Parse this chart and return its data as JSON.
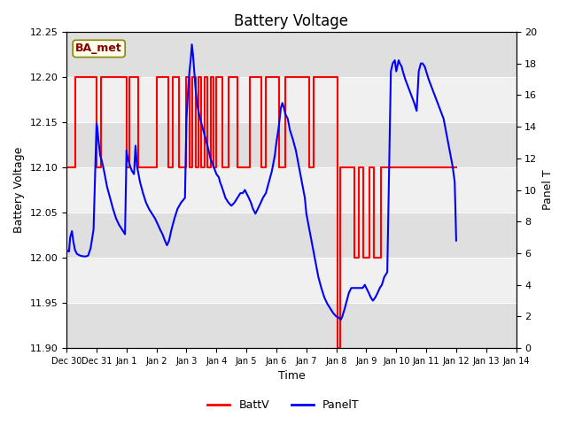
{
  "title": "Battery Voltage",
  "xlabel": "Time",
  "ylabel_left": "Battery Voltage",
  "ylabel_right": "Panel T",
  "ylim_left": [
    11.9,
    12.25
  ],
  "ylim_right": [
    0,
    20
  ],
  "background_color": "#ffffff",
  "plot_bg_color": "#f0f0f0",
  "grid_color": "#ffffff",
  "annotation_text": "BA_met",
  "annotation_bg": "#ffffee",
  "annotation_border": "#888800",
  "annotation_text_color": "#880000",
  "legend_labels": [
    "BattV",
    "PanelT"
  ],
  "batt_color": "red",
  "panel_color": "blue",
  "x_tick_labels": [
    "Dec 30",
    "Dec 31",
    "Jan 1",
    "Jan 2",
    "Jan 3",
    "Jan 4",
    "Jan 5",
    "Jan 6",
    "Jan 7",
    "Jan 8",
    "Jan 9",
    "Jan 10",
    "Jan 11",
    "Jan 12",
    "Jan 13",
    "Jan 14"
  ],
  "band_color": "#d8d8d8",
  "batt_data": [
    [
      0.0,
      12.1
    ],
    [
      0.3,
      12.1
    ],
    [
      0.3,
      12.2
    ],
    [
      1.0,
      12.2
    ],
    [
      1.0,
      12.1
    ],
    [
      1.15,
      12.1
    ],
    [
      1.15,
      12.2
    ],
    [
      2.0,
      12.2
    ],
    [
      2.0,
      12.1
    ],
    [
      2.1,
      12.1
    ],
    [
      2.1,
      12.2
    ],
    [
      2.4,
      12.2
    ],
    [
      2.4,
      12.1
    ],
    [
      3.0,
      12.1
    ],
    [
      3.0,
      12.2
    ],
    [
      3.4,
      12.2
    ],
    [
      3.4,
      12.1
    ],
    [
      3.55,
      12.1
    ],
    [
      3.55,
      12.2
    ],
    [
      3.75,
      12.2
    ],
    [
      3.75,
      12.1
    ],
    [
      4.0,
      12.1
    ],
    [
      4.0,
      12.2
    ],
    [
      4.1,
      12.2
    ],
    [
      4.1,
      12.1
    ],
    [
      4.2,
      12.1
    ],
    [
      4.2,
      12.2
    ],
    [
      4.3,
      12.2
    ],
    [
      4.3,
      12.1
    ],
    [
      4.4,
      12.1
    ],
    [
      4.4,
      12.2
    ],
    [
      4.5,
      12.2
    ],
    [
      4.5,
      12.1
    ],
    [
      4.6,
      12.1
    ],
    [
      4.6,
      12.2
    ],
    [
      4.7,
      12.2
    ],
    [
      4.7,
      12.1
    ],
    [
      4.8,
      12.1
    ],
    [
      4.8,
      12.2
    ],
    [
      4.9,
      12.2
    ],
    [
      4.9,
      12.1
    ],
    [
      5.0,
      12.1
    ],
    [
      5.0,
      12.2
    ],
    [
      5.2,
      12.2
    ],
    [
      5.2,
      12.1
    ],
    [
      5.4,
      12.1
    ],
    [
      5.4,
      12.2
    ],
    [
      5.7,
      12.2
    ],
    [
      5.7,
      12.1
    ],
    [
      6.1,
      12.1
    ],
    [
      6.1,
      12.2
    ],
    [
      6.5,
      12.2
    ],
    [
      6.5,
      12.1
    ],
    [
      6.65,
      12.1
    ],
    [
      6.65,
      12.2
    ],
    [
      7.1,
      12.2
    ],
    [
      7.1,
      12.1
    ],
    [
      7.3,
      12.1
    ],
    [
      7.3,
      12.2
    ],
    [
      8.1,
      12.2
    ],
    [
      8.1,
      12.1
    ],
    [
      8.25,
      12.1
    ],
    [
      8.25,
      12.2
    ],
    [
      9.05,
      12.2
    ],
    [
      9.05,
      11.9
    ],
    [
      9.12,
      11.9
    ],
    [
      9.12,
      12.1
    ],
    [
      9.6,
      12.1
    ],
    [
      9.6,
      12.0
    ],
    [
      9.75,
      12.0
    ],
    [
      9.75,
      12.1
    ],
    [
      9.9,
      12.1
    ],
    [
      9.9,
      12.0
    ],
    [
      10.1,
      12.0
    ],
    [
      10.1,
      12.1
    ],
    [
      10.25,
      12.1
    ],
    [
      10.25,
      12.0
    ],
    [
      10.5,
      12.0
    ],
    [
      10.5,
      12.1
    ],
    [
      13.0,
      12.1
    ]
  ],
  "panel_data": [
    [
      0.0,
      6.2
    ],
    [
      0.08,
      6.1
    ],
    [
      0.12,
      7.0
    ],
    [
      0.18,
      7.4
    ],
    [
      0.22,
      6.8
    ],
    [
      0.28,
      6.2
    ],
    [
      0.35,
      5.95
    ],
    [
      0.45,
      5.85
    ],
    [
      0.55,
      5.8
    ],
    [
      0.65,
      5.8
    ],
    [
      0.72,
      5.85
    ],
    [
      0.8,
      6.3
    ],
    [
      0.9,
      7.5
    ],
    [
      1.0,
      14.2
    ],
    [
      1.02,
      14.0
    ],
    [
      1.06,
      13.2
    ],
    [
      1.12,
      12.2
    ],
    [
      1.18,
      11.8
    ],
    [
      1.25,
      11.2
    ],
    [
      1.35,
      10.2
    ],
    [
      1.45,
      9.5
    ],
    [
      1.55,
      8.8
    ],
    [
      1.65,
      8.2
    ],
    [
      1.75,
      7.8
    ],
    [
      1.85,
      7.5
    ],
    [
      1.95,
      7.2
    ],
    [
      2.0,
      12.5
    ],
    [
      2.02,
      12.2
    ],
    [
      2.06,
      11.9
    ],
    [
      2.12,
      11.5
    ],
    [
      2.18,
      11.2
    ],
    [
      2.25,
      11.0
    ],
    [
      2.3,
      12.8
    ],
    [
      2.35,
      11.5
    ],
    [
      2.45,
      10.5
    ],
    [
      2.55,
      9.8
    ],
    [
      2.65,
      9.2
    ],
    [
      2.75,
      8.8
    ],
    [
      2.85,
      8.5
    ],
    [
      2.95,
      8.2
    ],
    [
      3.0,
      8.0
    ],
    [
      3.05,
      7.8
    ],
    [
      3.12,
      7.5
    ],
    [
      3.2,
      7.2
    ],
    [
      3.28,
      6.8
    ],
    [
      3.35,
      6.5
    ],
    [
      3.42,
      6.8
    ],
    [
      3.5,
      7.5
    ],
    [
      3.6,
      8.2
    ],
    [
      3.7,
      8.8
    ],
    [
      3.82,
      9.2
    ],
    [
      3.95,
      9.5
    ],
    [
      4.0,
      14.5
    ],
    [
      4.02,
      15.2
    ],
    [
      4.06,
      16.5
    ],
    [
      4.1,
      17.5
    ],
    [
      4.14,
      18.2
    ],
    [
      4.18,
      19.2
    ],
    [
      4.22,
      18.5
    ],
    [
      4.26,
      17.5
    ],
    [
      4.3,
      16.5
    ],
    [
      4.35,
      15.5
    ],
    [
      4.42,
      14.8
    ],
    [
      4.5,
      14.2
    ],
    [
      4.6,
      13.5
    ],
    [
      4.7,
      12.8
    ],
    [
      4.8,
      12.0
    ],
    [
      4.9,
      11.5
    ],
    [
      5.0,
      11.0
    ],
    [
      5.08,
      10.8
    ],
    [
      5.12,
      10.5
    ],
    [
      5.18,
      10.2
    ],
    [
      5.25,
      9.8
    ],
    [
      5.3,
      9.5
    ],
    [
      5.4,
      9.2
    ],
    [
      5.5,
      9.0
    ],
    [
      5.6,
      9.2
    ],
    [
      5.7,
      9.5
    ],
    [
      5.8,
      9.8
    ],
    [
      5.88,
      9.8
    ],
    [
      5.95,
      10.0
    ],
    [
      6.0,
      9.8
    ],
    [
      6.08,
      9.5
    ],
    [
      6.15,
      9.2
    ],
    [
      6.22,
      8.8
    ],
    [
      6.3,
      8.5
    ],
    [
      6.38,
      8.8
    ],
    [
      6.48,
      9.2
    ],
    [
      6.55,
      9.5
    ],
    [
      6.65,
      9.8
    ],
    [
      6.75,
      10.5
    ],
    [
      6.85,
      11.2
    ],
    [
      6.95,
      12.2
    ],
    [
      7.0,
      13.0
    ],
    [
      7.08,
      14.0
    ],
    [
      7.15,
      15.2
    ],
    [
      7.2,
      15.5
    ],
    [
      7.25,
      15.2
    ],
    [
      7.3,
      14.8
    ],
    [
      7.38,
      14.5
    ],
    [
      7.45,
      13.8
    ],
    [
      7.55,
      13.2
    ],
    [
      7.65,
      12.5
    ],
    [
      7.75,
      11.5
    ],
    [
      7.85,
      10.5
    ],
    [
      7.95,
      9.5
    ],
    [
      8.0,
      8.5
    ],
    [
      8.1,
      7.5
    ],
    [
      8.2,
      6.5
    ],
    [
      8.3,
      5.5
    ],
    [
      8.4,
      4.5
    ],
    [
      8.5,
      3.8
    ],
    [
      8.6,
      3.2
    ],
    [
      8.7,
      2.8
    ],
    [
      8.8,
      2.5
    ],
    [
      8.9,
      2.2
    ],
    [
      9.0,
      2.0
    ],
    [
      9.1,
      1.9
    ],
    [
      9.15,
      1.8
    ],
    [
      9.2,
      2.0
    ],
    [
      9.28,
      2.5
    ],
    [
      9.35,
      3.0
    ],
    [
      9.42,
      3.5
    ],
    [
      9.5,
      3.8
    ],
    [
      9.58,
      3.8
    ],
    [
      9.65,
      3.8
    ],
    [
      9.72,
      3.8
    ],
    [
      9.8,
      3.8
    ],
    [
      9.88,
      3.8
    ],
    [
      9.95,
      4.0
    ],
    [
      10.0,
      3.8
    ],
    [
      10.08,
      3.5
    ],
    [
      10.15,
      3.2
    ],
    [
      10.22,
      3.0
    ],
    [
      10.3,
      3.2
    ],
    [
      10.38,
      3.5
    ],
    [
      10.45,
      3.8
    ],
    [
      10.52,
      4.0
    ],
    [
      10.6,
      4.5
    ],
    [
      10.7,
      4.8
    ],
    [
      10.82,
      17.5
    ],
    [
      10.88,
      18.0
    ],
    [
      10.95,
      18.2
    ],
    [
      11.0,
      17.5
    ],
    [
      11.08,
      18.2
    ],
    [
      11.12,
      18.0
    ],
    [
      11.18,
      17.8
    ],
    [
      11.22,
      17.5
    ],
    [
      11.3,
      17.0
    ],
    [
      11.4,
      16.5
    ],
    [
      11.5,
      16.0
    ],
    [
      11.6,
      15.5
    ],
    [
      11.68,
      15.0
    ],
    [
      11.75,
      17.5
    ],
    [
      11.82,
      18.0
    ],
    [
      11.88,
      18.0
    ],
    [
      11.95,
      17.8
    ],
    [
      12.0,
      17.5
    ],
    [
      12.08,
      17.0
    ],
    [
      12.18,
      16.5
    ],
    [
      12.28,
      16.0
    ],
    [
      12.38,
      15.5
    ],
    [
      12.48,
      15.0
    ],
    [
      12.58,
      14.5
    ],
    [
      12.68,
      13.5
    ],
    [
      12.78,
      12.5
    ],
    [
      12.88,
      11.5
    ],
    [
      12.95,
      10.5
    ],
    [
      13.0,
      6.8
    ]
  ]
}
